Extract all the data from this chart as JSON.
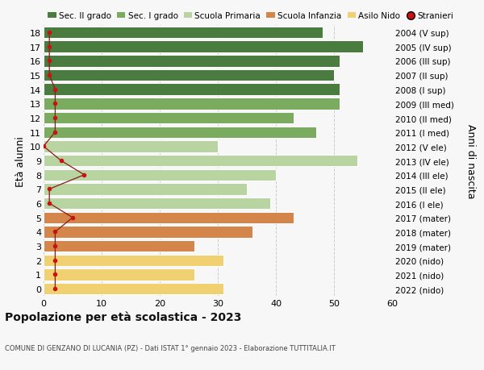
{
  "ages": [
    18,
    17,
    16,
    15,
    14,
    13,
    12,
    11,
    10,
    9,
    8,
    7,
    6,
    5,
    4,
    3,
    2,
    1,
    0
  ],
  "right_labels": [
    "2004 (V sup)",
    "2005 (IV sup)",
    "2006 (III sup)",
    "2007 (II sup)",
    "2008 (I sup)",
    "2009 (III med)",
    "2010 (II med)",
    "2011 (I med)",
    "2012 (V ele)",
    "2013 (IV ele)",
    "2014 (III ele)",
    "2015 (II ele)",
    "2016 (I ele)",
    "2017 (mater)",
    "2018 (mater)",
    "2019 (mater)",
    "2020 (nido)",
    "2021 (nido)",
    "2022 (nido)"
  ],
  "bar_values": [
    48,
    55,
    51,
    50,
    51,
    51,
    43,
    47,
    30,
    54,
    40,
    35,
    39,
    43,
    36,
    26,
    31,
    26,
    31
  ],
  "bar_colors": [
    "#4a7c3f",
    "#4a7c3f",
    "#4a7c3f",
    "#4a7c3f",
    "#4a7c3f",
    "#7aab5e",
    "#7aab5e",
    "#7aab5e",
    "#b8d4a0",
    "#b8d4a0",
    "#b8d4a0",
    "#b8d4a0",
    "#b8d4a0",
    "#d4854a",
    "#d4854a",
    "#d4854a",
    "#f0d070",
    "#f0d070",
    "#f0d070"
  ],
  "stranieri_values": [
    1,
    1,
    1,
    1,
    2,
    2,
    2,
    2,
    0,
    3,
    7,
    1,
    1,
    5,
    2,
    2,
    2,
    2,
    2
  ],
  "legend_labels": [
    "Sec. II grado",
    "Sec. I grado",
    "Scuola Primaria",
    "Scuola Infanzia",
    "Asilo Nido",
    "Stranieri"
  ],
  "legend_colors": [
    "#4a7c3f",
    "#7aab5e",
    "#b8d4a0",
    "#d4854a",
    "#f0d070",
    "#cc1111"
  ],
  "title": "Popolazione per età scolastica - 2023",
  "subtitle": "COMUNE DI GENZANO DI LUCANIA (PZ) - Dati ISTAT 1° gennaio 2023 - Elaborazione TUTTITALIA.IT",
  "ylabel_left": "Età alunni",
  "ylabel_right": "Anni di nascita",
  "xlim": [
    0,
    60
  ],
  "xticks": [
    0,
    10,
    20,
    30,
    40,
    50,
    60
  ],
  "background_color": "#f7f7f7",
  "grid_color": "#cccccc"
}
